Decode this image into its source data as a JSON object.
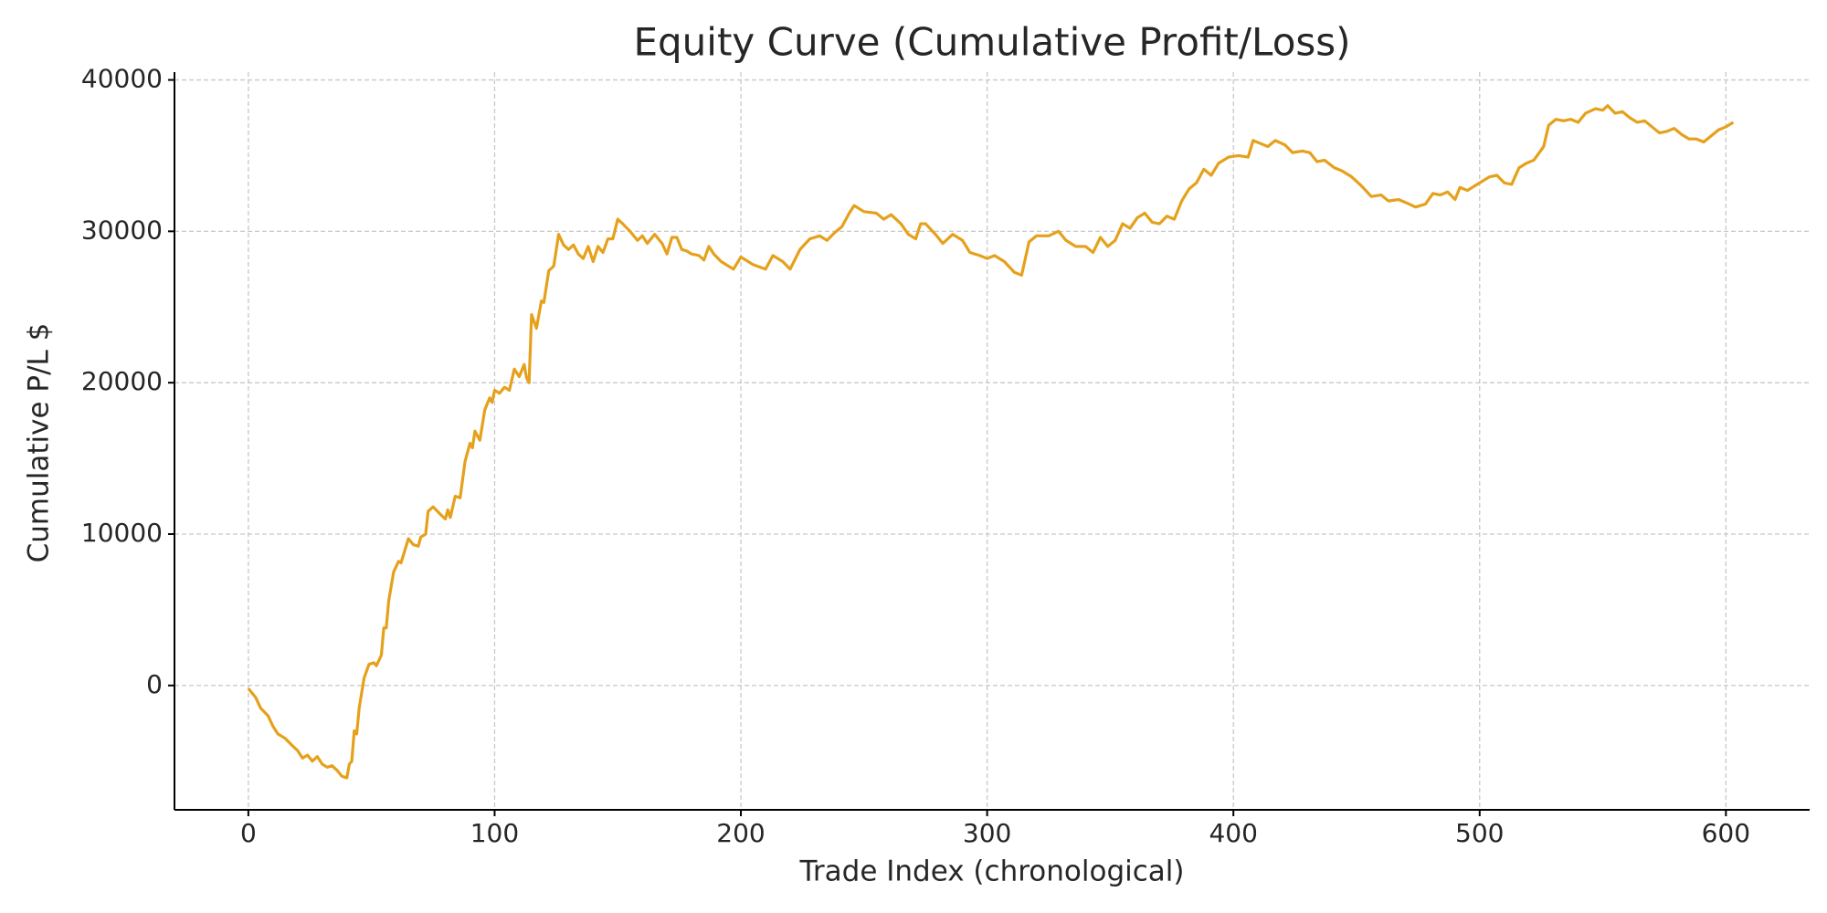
{
  "chart_data": {
    "type": "line",
    "title": "Equity Curve (Cumulative Profit/Loss)",
    "x_label": "Trade Index (chronological)",
    "y_label": "Cumulative P/L $",
    "color": "#E5A11C",
    "grid": true,
    "xlim": [
      -30,
      634
    ],
    "xticks": [
      0,
      100,
      200,
      300,
      400,
      500,
      600
    ],
    "ylim": [
      -8215,
      40515
    ],
    "yticks": [
      0,
      10000,
      20000,
      30000,
      40000
    ],
    "x": [
      0,
      3,
      5,
      8,
      10,
      12,
      15,
      18,
      20,
      22,
      24,
      26,
      28,
      30,
      32,
      34,
      36,
      38,
      40,
      41,
      42,
      43,
      44,
      45,
      47,
      49,
      51,
      52,
      54,
      55,
      56,
      57,
      59,
      61,
      62,
      65,
      67,
      69,
      70,
      72,
      73,
      75,
      78,
      80,
      81,
      82,
      84,
      86,
      88,
      90,
      91,
      92,
      94,
      96,
      98,
      99,
      100,
      102,
      104,
      106,
      108,
      110,
      112,
      113,
      114,
      115,
      117,
      119,
      120,
      122,
      124,
      126,
      128,
      130,
      132,
      134,
      136,
      138,
      140,
      142,
      144,
      146,
      148,
      150,
      152,
      155,
      158,
      160,
      162,
      165,
      168,
      170,
      172,
      174,
      176,
      178,
      180,
      183,
      185,
      187,
      189,
      192,
      195,
      197,
      200,
      205,
      210,
      213,
      217,
      220,
      224,
      228,
      232,
      235,
      238,
      241,
      244,
      246,
      250,
      255,
      258,
      261,
      265,
      268,
      271,
      273,
      275,
      279,
      282,
      286,
      290,
      293,
      297,
      300,
      303,
      307,
      311,
      314,
      317,
      320,
      325,
      329,
      332,
      336,
      340,
      343,
      346,
      349,
      352,
      355,
      358,
      361,
      364,
      367,
      370,
      373,
      376,
      379,
      382,
      385,
      388,
      391,
      394,
      398,
      402,
      406,
      408,
      411,
      414,
      417,
      421,
      424,
      428,
      431,
      434,
      437,
      441,
      444,
      448,
      452,
      456,
      460,
      463,
      467,
      470,
      474,
      478,
      481,
      484,
      487,
      490,
      492,
      495,
      498,
      501,
      504,
      507,
      510,
      513,
      516,
      519,
      522,
      526,
      528,
      531,
      534,
      537,
      540,
      543,
      547,
      550,
      552,
      555,
      558,
      561,
      564,
      567,
      570,
      573,
      576,
      579,
      582,
      585,
      588,
      591,
      594,
      597,
      600,
      603
    ],
    "values": [
      -200,
      -800,
      -1500,
      -2000,
      -2700,
      -3200,
      -3500,
      -4000,
      -4300,
      -4800,
      -4600,
      -5000,
      -4700,
      -5200,
      -5400,
      -5300,
      -5600,
      -6000,
      -6100,
      -5200,
      -5000,
      -3000,
      -3200,
      -1500,
      500,
      1400,
      1500,
      1300,
      2000,
      3800,
      3800,
      5600,
      7500,
      8200,
      8100,
      9700,
      9300,
      9200,
      9800,
      10000,
      11500,
      11800,
      11300,
      11000,
      11600,
      11100,
      12500,
      12400,
      14800,
      16000,
      15700,
      16800,
      16200,
      18200,
      19000,
      18700,
      19500,
      19300,
      19700,
      19500,
      20900,
      20400,
      21200,
      20300,
      20000,
      24500,
      23600,
      25400,
      25300,
      27400,
      27700,
      29800,
      29100,
      28800,
      29100,
      28500,
      28200,
      29000,
      28000,
      29000,
      28600,
      29500,
      29500,
      30800,
      30500,
      30000,
      29400,
      29700,
      29200,
      29800,
      29200,
      28500,
      29600,
      29600,
      28800,
      28700,
      28500,
      28400,
      28100,
      29000,
      28500,
      28000,
      27700,
      27500,
      28300,
      27800,
      27500,
      28400,
      28000,
      27500,
      28800,
      29500,
      29700,
      29400,
      29900,
      30300,
      31200,
      31700,
      31300,
      31200,
      30800,
      31100,
      30500,
      29800,
      29500,
      30500,
      30500,
      29800,
      29200,
      29800,
      29400,
      28600,
      28400,
      28200,
      28400,
      28000,
      27300,
      27100,
      29300,
      29700,
      29700,
      30000,
      29400,
      29000,
      29000,
      28600,
      29600,
      29000,
      29400,
      30500,
      30200,
      30900,
      31200,
      30600,
      30500,
      31000,
      30800,
      32000,
      32800,
      33200,
      34100,
      33700,
      34500,
      34900,
      35000,
      34900,
      36000,
      35800,
      35600,
      36000,
      35700,
      35200,
      35300,
      35200,
      34600,
      34700,
      34200,
      34000,
      33600,
      33000,
      32300,
      32400,
      32000,
      32100,
      31900,
      31600,
      31800,
      32500,
      32400,
      32600,
      32100,
      32900,
      32700,
      33000,
      33300,
      33600,
      33700,
      33200,
      33100,
      34200,
      34500,
      34700,
      35600,
      37000,
      37400,
      37300,
      37400,
      37200,
      37800,
      38100,
      38000,
      38300,
      37800,
      37900,
      37500,
      37200,
      37300,
      36900,
      36500,
      36600,
      36800,
      36400,
      36100,
      36100,
      35900,
      36300,
      36700,
      36900,
      37200
    ]
  }
}
